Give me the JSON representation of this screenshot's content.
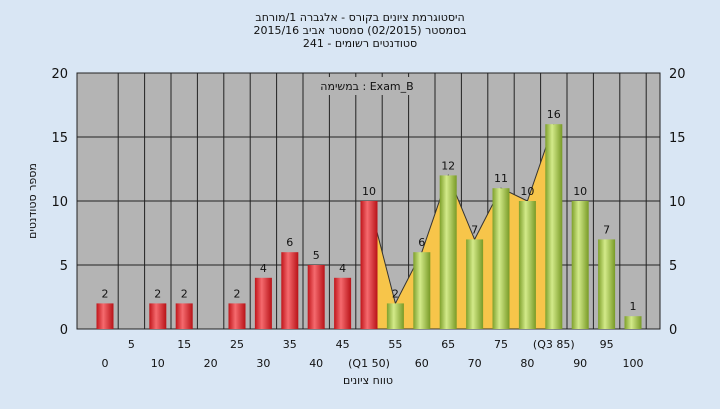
{
  "title_lines": [
    "היסטוגרמת ציונים בקורס - אלגברה 1/מורחב",
    "בסמסטר  (02/2015)  סמסטר אביב 2015/16",
    "סטודנטים רשומים - 241"
  ],
  "chart_data": {
    "type": "bar",
    "annotation": "במשימה : Exam_B",
    "ylabel": "מספר סטודנטים",
    "xlabel": "טווח ציונים",
    "ylim": [
      0,
      20
    ],
    "yticks": [
      0,
      5,
      10,
      15,
      20
    ],
    "grid": true,
    "categories": [
      "0",
      "5",
      "10",
      "15",
      "20",
      "25",
      "30",
      "35",
      "40",
      "45",
      "50",
      "55",
      "60",
      "65",
      "70",
      "75",
      "80",
      "85",
      "90",
      "95",
      "100"
    ],
    "category_labels": [
      "0",
      "5",
      "10",
      "15",
      "20",
      "25",
      "30",
      "35",
      "40",
      "45",
      "(Q1 50)",
      "55",
      "60",
      "65",
      "70",
      "75",
      "80",
      "(Q3 85)",
      "90",
      "95",
      "100"
    ],
    "values": [
      2,
      0,
      2,
      2,
      0,
      2,
      4,
      6,
      5,
      4,
      10,
      2,
      6,
      12,
      7,
      11,
      10,
      16,
      10,
      7,
      1
    ],
    "bar_colors": [
      "red",
      "red",
      "red",
      "red",
      "red",
      "red",
      "red",
      "red",
      "red",
      "red",
      "red",
      "green",
      "green",
      "green",
      "green",
      "green",
      "green",
      "green",
      "green",
      "green",
      "green"
    ],
    "value_labels": [
      "2",
      "",
      "2",
      "2",
      "",
      "2",
      "4",
      "6",
      "5",
      "4",
      "10",
      "2",
      "6",
      "12",
      "7",
      "11",
      "10",
      "16",
      "10",
      "7",
      "1"
    ],
    "colors": {
      "red": "#e8252b",
      "green": "#9cc43c",
      "area": "#f7c54a",
      "plot_bg": "#b4b4b4",
      "page_bg": "#d9e6f4"
    }
  }
}
